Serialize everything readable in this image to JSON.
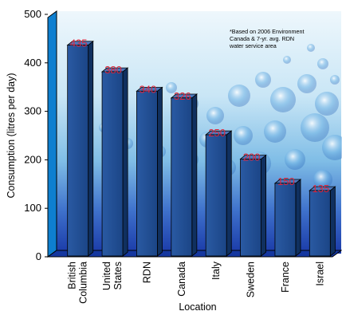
{
  "chart_data": {
    "type": "bar",
    "categories": [
      "British Columbia",
      "United States",
      "RDN",
      "Canada",
      "Italy",
      "Sweden",
      "France",
      "Israel"
    ],
    "category_lines": [
      [
        "British",
        "Columbia"
      ],
      [
        "United",
        "States"
      ],
      [
        "RDN"
      ],
      [
        "Canada"
      ],
      [
        "Italy"
      ],
      [
        "Sweden"
      ],
      [
        "France"
      ],
      [
        "Israel"
      ]
    ],
    "values": [
      435,
      380,
      340,
      326,
      250,
      200,
      150,
      135
    ],
    "data_labels": [
      "435",
      "380",
      "340",
      "326",
      "250",
      "200",
      "150",
      "135"
    ],
    "xlabel": "Location",
    "ylabel": "Consumption (litres per day)",
    "ylim": [
      0,
      500
    ],
    "yticks": [
      0,
      100,
      200,
      300,
      400,
      500
    ],
    "grid": false,
    "note_lines": [
      "*Based on 2006 Environment",
      "Canada & 7-yr. avg. RDN",
      "water service area"
    ],
    "colors": {
      "bar_front": "#1f4b8c",
      "bar_side": "#10305f",
      "bar_top": "#4a78bd",
      "value_label": "#e0253b",
      "background_top": "#e9f4fb",
      "background_mid": "#9dd0ee",
      "background_bottom": "#1a3fb2"
    }
  }
}
